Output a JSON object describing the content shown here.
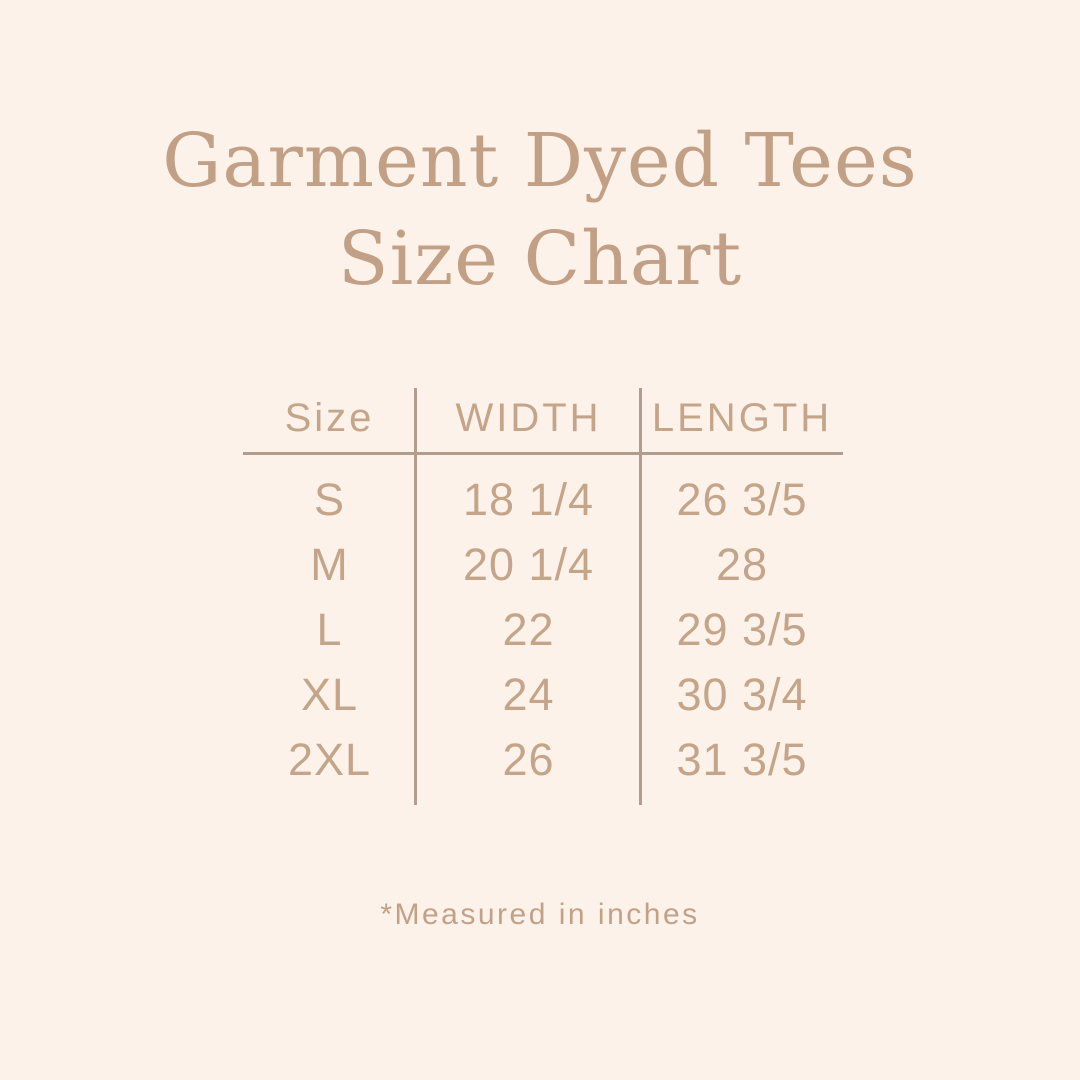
{
  "page": {
    "background_color": "#fdf2e9",
    "accent_text_color": "#c2a086",
    "line_color": "#b09d90"
  },
  "title": {
    "line1": "Garment Dyed Tees",
    "line2": "Size Chart"
  },
  "table": {
    "headers": [
      "Size",
      "WIDTH",
      "LENGTH"
    ],
    "rows": [
      {
        "size": "S",
        "width": "18 1/4",
        "length": "26 3/5"
      },
      {
        "size": "M",
        "width": "20 1/4",
        "length": "28"
      },
      {
        "size": "L",
        "width": "22",
        "length": "29 3/5"
      },
      {
        "size": "XL",
        "width": "24",
        "length": "30 3/4"
      },
      {
        "size": "2XL",
        "width": "26",
        "length": "31 3/5"
      }
    ]
  },
  "footnote": "*Measured in inches"
}
